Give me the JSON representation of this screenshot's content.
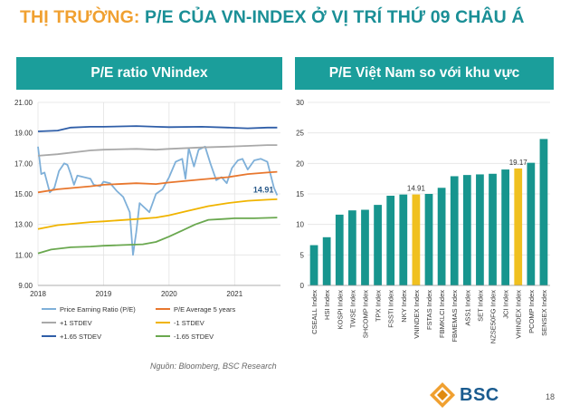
{
  "slide": {
    "title_prefix": "THỊ TRƯỜNG:",
    "title_main": " P/E CỦA VN-INDEX Ở VỊ TRÍ THỨ 09 CHÂU Á",
    "source": "Nguồn: Bloomberg, BSC Research",
    "logo_text": "BSC",
    "page_number": "18"
  },
  "colors": {
    "title_accent": "#f0a030",
    "title_main": "#1a8f96",
    "header_bg": "#1b9e9b",
    "bar_teal": "#17958e",
    "bar_highlight": "#f0c020"
  },
  "chart_data": [
    {
      "type": "line",
      "title": "P/E ratio VNindex",
      "xlabel": "",
      "ylabel": "",
      "x_ticks": [
        "2018",
        "2019",
        "2020",
        "2021"
      ],
      "y_ticks": [
        "9.00",
        "11.00",
        "13.00",
        "15.00",
        "17.00",
        "19.00",
        "21.00"
      ],
      "ylim": [
        9,
        21
      ],
      "x_range": [
        2018.0,
        2021.7
      ],
      "grid": true,
      "legend_position": "bottom",
      "annotation": "14.91",
      "series": [
        {
          "name": "Price Earning Ratio (P/E)",
          "color": "#7fb0d9",
          "points": [
            [
              2018.0,
              18.1
            ],
            [
              2018.05,
              16.3
            ],
            [
              2018.1,
              16.4
            ],
            [
              2018.18,
              15.1
            ],
            [
              2018.25,
              15.4
            ],
            [
              2018.32,
              16.5
            ],
            [
              2018.4,
              17.0
            ],
            [
              2018.45,
              16.9
            ],
            [
              2018.5,
              16.3
            ],
            [
              2018.55,
              15.6
            ],
            [
              2018.6,
              16.2
            ],
            [
              2018.7,
              16.1
            ],
            [
              2018.8,
              16.0
            ],
            [
              2018.85,
              15.6
            ],
            [
              2018.95,
              15.5
            ],
            [
              2019.0,
              15.8
            ],
            [
              2019.1,
              15.7
            ],
            [
              2019.2,
              15.2
            ],
            [
              2019.3,
              14.8
            ],
            [
              2019.4,
              13.8
            ],
            [
              2019.45,
              11.0
            ],
            [
              2019.5,
              12.5
            ],
            [
              2019.55,
              14.4
            ],
            [
              2019.6,
              14.2
            ],
            [
              2019.7,
              13.8
            ],
            [
              2019.8,
              15.0
            ],
            [
              2019.9,
              15.3
            ],
            [
              2020.0,
              16.1
            ],
            [
              2020.1,
              17.1
            ],
            [
              2020.2,
              17.3
            ],
            [
              2020.25,
              16.0
            ],
            [
              2020.3,
              18.0
            ],
            [
              2020.38,
              16.8
            ],
            [
              2020.45,
              17.9
            ],
            [
              2020.55,
              18.1
            ],
            [
              2020.63,
              17.0
            ],
            [
              2020.72,
              15.9
            ],
            [
              2020.8,
              16.1
            ],
            [
              2020.88,
              15.7
            ],
            [
              2020.96,
              16.7
            ],
            [
              2021.05,
              17.2
            ],
            [
              2021.12,
              17.3
            ],
            [
              2021.2,
              16.6
            ],
            [
              2021.3,
              17.2
            ],
            [
              2021.4,
              17.3
            ],
            [
              2021.5,
              17.1
            ],
            [
              2021.6,
              15.4
            ],
            [
              2021.65,
              14.91
            ]
          ]
        },
        {
          "name": "P/E Average 5 years",
          "color": "#e8772e",
          "points": [
            [
              2018.0,
              15.1
            ],
            [
              2018.3,
              15.3
            ],
            [
              2018.8,
              15.5
            ],
            [
              2019.0,
              15.6
            ],
            [
              2019.5,
              15.7
            ],
            [
              2019.8,
              15.65
            ],
            [
              2020.0,
              15.75
            ],
            [
              2020.5,
              15.95
            ],
            [
              2020.9,
              16.1
            ],
            [
              2021.2,
              16.3
            ],
            [
              2021.5,
              16.4
            ],
            [
              2021.65,
              16.45
            ]
          ]
        },
        {
          "name": "+1 STDEV",
          "color": "#a9a9a9",
          "points": [
            [
              2018.0,
              17.5
            ],
            [
              2018.3,
              17.6
            ],
            [
              2018.8,
              17.85
            ],
            [
              2019.0,
              17.9
            ],
            [
              2019.5,
              17.95
            ],
            [
              2019.8,
              17.9
            ],
            [
              2020.0,
              17.95
            ],
            [
              2020.5,
              18.05
            ],
            [
              2020.9,
              18.1
            ],
            [
              2021.2,
              18.15
            ],
            [
              2021.5,
              18.2
            ],
            [
              2021.65,
              18.2
            ]
          ]
        },
        {
          "name": "-1 STDEV",
          "color": "#f0b400",
          "points": [
            [
              2018.0,
              12.7
            ],
            [
              2018.3,
              12.95
            ],
            [
              2018.8,
              13.15
            ],
            [
              2019.0,
              13.2
            ],
            [
              2019.5,
              13.35
            ],
            [
              2019.8,
              13.45
            ],
            [
              2020.0,
              13.6
            ],
            [
              2020.3,
              13.9
            ],
            [
              2020.6,
              14.2
            ],
            [
              2020.9,
              14.4
            ],
            [
              2021.2,
              14.55
            ],
            [
              2021.5,
              14.62
            ],
            [
              2021.65,
              14.65
            ]
          ]
        },
        {
          "name": "+1.65 STDEV",
          "color": "#2f5ea8",
          "points": [
            [
              2018.0,
              19.1
            ],
            [
              2018.3,
              19.15
            ],
            [
              2018.5,
              19.35
            ],
            [
              2018.8,
              19.4
            ],
            [
              2019.0,
              19.4
            ],
            [
              2019.5,
              19.45
            ],
            [
              2019.8,
              19.4
            ],
            [
              2020.0,
              19.38
            ],
            [
              2020.5,
              19.4
            ],
            [
              2020.9,
              19.35
            ],
            [
              2021.2,
              19.3
            ],
            [
              2021.5,
              19.35
            ],
            [
              2021.65,
              19.35
            ]
          ]
        },
        {
          "name": "-1.65 STDEV",
          "color": "#6aa84f",
          "points": [
            [
              2018.0,
              11.1
            ],
            [
              2018.2,
              11.35
            ],
            [
              2018.5,
              11.5
            ],
            [
              2018.8,
              11.55
            ],
            [
              2019.0,
              11.6
            ],
            [
              2019.3,
              11.65
            ],
            [
              2019.6,
              11.7
            ],
            [
              2019.8,
              11.85
            ],
            [
              2020.0,
              12.2
            ],
            [
              2020.2,
              12.6
            ],
            [
              2020.4,
              13.0
            ],
            [
              2020.6,
              13.3
            ],
            [
              2020.8,
              13.35
            ],
            [
              2021.0,
              13.4
            ],
            [
              2021.3,
              13.4
            ],
            [
              2021.65,
              13.45
            ]
          ]
        }
      ]
    },
    {
      "type": "bar",
      "title": "P/E Việt Nam so với khu vực",
      "xlabel": "",
      "ylabel": "",
      "ylim": [
        0,
        30
      ],
      "y_ticks": [
        "0",
        "5",
        "10",
        "15",
        "20",
        "25",
        "30"
      ],
      "grid": true,
      "categories": [
        "CSEALL Index",
        "HSI Index",
        "KOSPI Index",
        "TWSE Index",
        "SHCOMP Index",
        "TPX Index",
        "FSSTI Index",
        "NKY Index",
        "VNINDEX Index",
        "FSTAS Index",
        "FBMKLCI Index",
        "FBMEMAS Index",
        "ASS1 Index",
        "SET Index",
        "NZSE50FG Index",
        "JCI Index",
        "VHINDEX Index",
        "PCOMP Index",
        "SENSEX Index"
      ],
      "values": [
        6.6,
        7.9,
        11.6,
        12.3,
        12.4,
        13.2,
        14.7,
        14.9,
        14.91,
        15.0,
        16.0,
        17.9,
        18.1,
        18.2,
        18.3,
        19.0,
        19.17,
        20.1,
        24.0
      ],
      "highlight": [
        "VNINDEX Index",
        "VHINDEX Index"
      ],
      "data_labels": {
        "VNINDEX Index": "14.91",
        "VHINDEX Index": "19.17"
      }
    }
  ]
}
